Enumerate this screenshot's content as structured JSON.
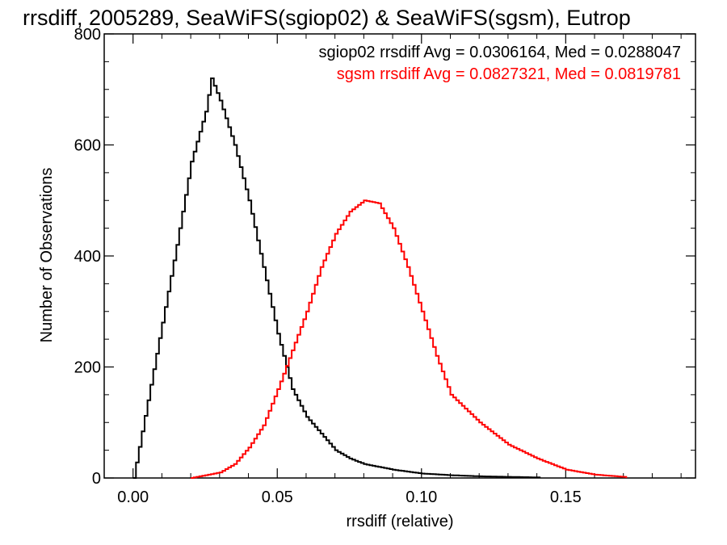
{
  "chart_data": {
    "type": "line",
    "title": "rrsdiff, 2005289, SeaWiFS(sgiop02) & SeaWiFS(sgsm), Eutrop",
    "xlabel": "rrsdiff (relative)",
    "ylabel": "Number of Observations",
    "xlim": [
      -0.01,
      0.195
    ],
    "ylim": [
      0,
      800
    ],
    "x_ticks": [
      0.0,
      0.05,
      0.1,
      0.15
    ],
    "x_tick_labels": [
      "0.00",
      "0.05",
      "0.10",
      "0.15"
    ],
    "y_ticks": [
      0,
      200,
      400,
      600,
      800
    ],
    "y_tick_labels": [
      "0",
      "200",
      "400",
      "600",
      "800"
    ],
    "grid": false,
    "legend_position": "top-right",
    "annotations": [
      {
        "text": "sgiop02 rrsdiff Avg = 0.0306164, Med = 0.0288047",
        "color": "#000000"
      },
      {
        "text": "sgsm rrsdiff Avg = 0.0827321, Med = 0.0819781",
        "color": "#ff0000"
      }
    ],
    "series": [
      {
        "name": "sgiop02",
        "color": "#000000",
        "x": [
          0.0,
          0.005,
          0.01,
          0.015,
          0.02,
          0.025,
          0.027,
          0.03,
          0.035,
          0.04,
          0.045,
          0.05,
          0.055,
          0.06,
          0.065,
          0.07,
          0.075,
          0.08,
          0.09,
          0.1,
          0.11,
          0.12,
          0.13,
          0.14
        ],
        "y": [
          0,
          140,
          280,
          420,
          570,
          660,
          720,
          680,
          600,
          500,
          380,
          260,
          160,
          110,
          80,
          50,
          35,
          25,
          15,
          8,
          5,
          3,
          2,
          1
        ]
      },
      {
        "name": "sgsm",
        "color": "#ff0000",
        "x": [
          0.02,
          0.03,
          0.035,
          0.04,
          0.045,
          0.05,
          0.055,
          0.06,
          0.065,
          0.07,
          0.075,
          0.08,
          0.085,
          0.09,
          0.095,
          0.1,
          0.105,
          0.11,
          0.12,
          0.13,
          0.14,
          0.15,
          0.16,
          0.17
        ],
        "y": [
          0,
          10,
          25,
          55,
          95,
          160,
          230,
          300,
          380,
          440,
          480,
          500,
          495,
          450,
          380,
          300,
          220,
          150,
          100,
          60,
          35,
          15,
          6,
          2
        ]
      }
    ]
  }
}
